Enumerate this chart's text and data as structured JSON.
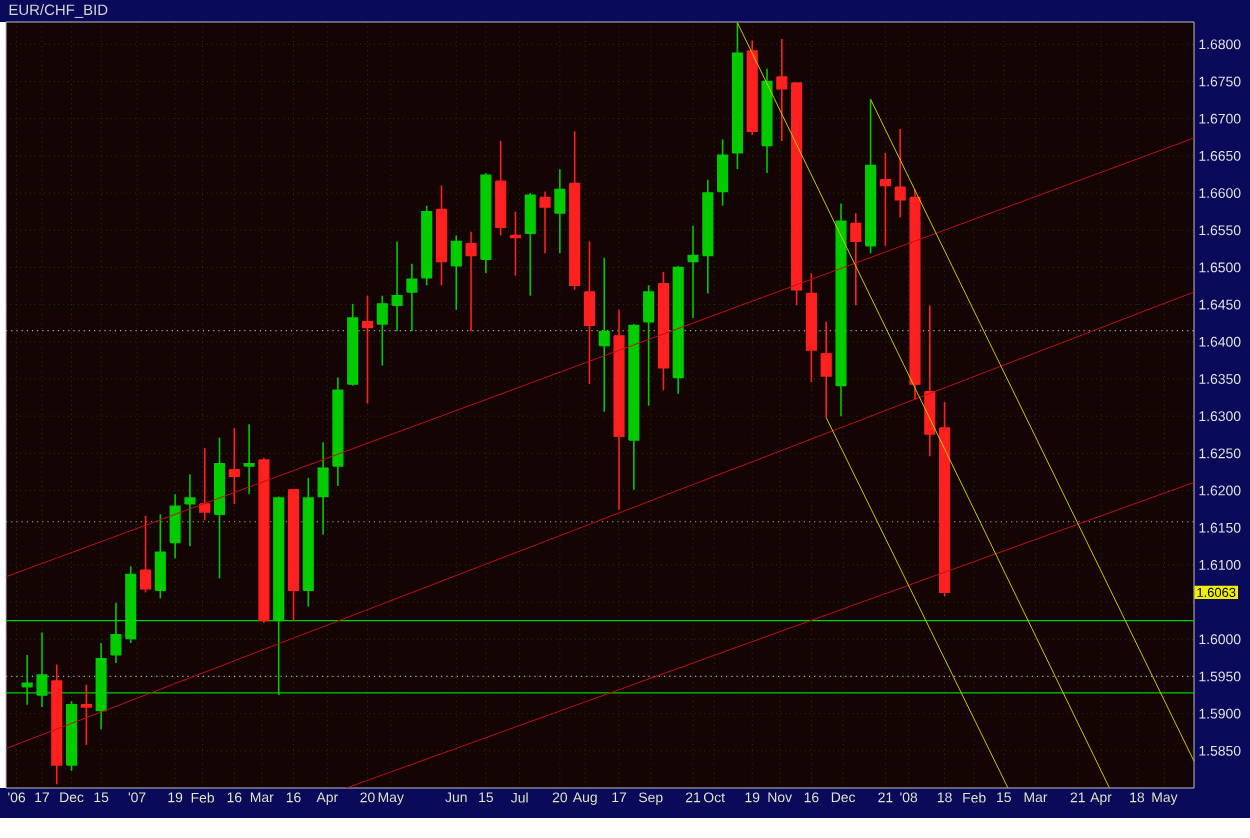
{
  "chart_data": {
    "type": "candlestick",
    "title": "EUR/CHF_BID",
    "xlim": [
      "2006-10-31",
      "2008-05-15"
    ],
    "ylim": [
      1.58,
      1.683
    ],
    "xticks": [
      {
        "value": "2006-11-05",
        "label": "'06"
      },
      {
        "value": "2006-11-17",
        "label": "17"
      },
      {
        "value": "2006-12-01",
        "label": "Dec"
      },
      {
        "value": "2006-12-15",
        "label": "15"
      },
      {
        "value": "2007-01-01",
        "label": "'07"
      },
      {
        "value": "2007-01-19",
        "label": "19"
      },
      {
        "value": "2007-02-01",
        "label": "Feb"
      },
      {
        "value": "2007-02-16",
        "label": "16"
      },
      {
        "value": "2007-03-01",
        "label": "Mar"
      },
      {
        "value": "2007-03-16",
        "label": "16"
      },
      {
        "value": "2007-04-01",
        "label": "Apr"
      },
      {
        "value": "2007-04-20",
        "label": "20"
      },
      {
        "value": "2007-05-01",
        "label": "May"
      },
      {
        "value": "2007-06-01",
        "label": "Jun"
      },
      {
        "value": "2007-06-15",
        "label": "15"
      },
      {
        "value": "2007-07-01",
        "label": "Jul"
      },
      {
        "value": "2007-07-20",
        "label": "20"
      },
      {
        "value": "2007-08-01",
        "label": "Aug"
      },
      {
        "value": "2007-08-17",
        "label": "17"
      },
      {
        "value": "2007-09-01",
        "label": "Sep"
      },
      {
        "value": "2007-09-21",
        "label": "21"
      },
      {
        "value": "2007-10-01",
        "label": "Oct"
      },
      {
        "value": "2007-10-19",
        "label": "19"
      },
      {
        "value": "2007-11-01",
        "label": "Nov"
      },
      {
        "value": "2007-11-16",
        "label": "16"
      },
      {
        "value": "2007-12-01",
        "label": "Dec"
      },
      {
        "value": "2007-12-21",
        "label": "21"
      },
      {
        "value": "2008-01-01",
        "label": "'08"
      },
      {
        "value": "2008-01-18",
        "label": "18"
      },
      {
        "value": "2008-02-01",
        "label": "Feb"
      },
      {
        "value": "2008-02-15",
        "label": "15"
      },
      {
        "value": "2008-03-01",
        "label": "Mar"
      },
      {
        "value": "2008-03-21",
        "label": "21"
      },
      {
        "value": "2008-04-01",
        "label": "Apr"
      },
      {
        "value": "2008-04-18",
        "label": "18"
      },
      {
        "value": "2008-05-01",
        "label": "May"
      }
    ],
    "yticks": [
      {
        "value": 1.585,
        "label": "1.5850"
      },
      {
        "value": 1.59,
        "label": "1.5900"
      },
      {
        "value": 1.595,
        "label": "1.5950"
      },
      {
        "value": 1.6,
        "label": "1.6000"
      },
      {
        "value": 1.605,
        "label": null
      },
      {
        "value": 1.61,
        "label": "1.6100"
      },
      {
        "value": 1.615,
        "label": "1.6150"
      },
      {
        "value": 1.62,
        "label": "1.6200"
      },
      {
        "value": 1.625,
        "label": "1.6250"
      },
      {
        "value": 1.63,
        "label": "1.6300"
      },
      {
        "value": 1.635,
        "label": "1.6350"
      },
      {
        "value": 1.64,
        "label": "1.6400"
      },
      {
        "value": 1.645,
        "label": "1.6450"
      },
      {
        "value": 1.65,
        "label": "1.6500"
      },
      {
        "value": 1.655,
        "label": "1.6550"
      },
      {
        "value": 1.66,
        "label": "1.6600"
      },
      {
        "value": 1.665,
        "label": "1.6650"
      },
      {
        "value": 1.67,
        "label": "1.6700"
      },
      {
        "value": 1.675,
        "label": "1.6750"
      },
      {
        "value": 1.68,
        "label": "1.6800"
      }
    ],
    "grid": true,
    "ref_lines": [
      {
        "axis": "y",
        "value": 1.6025,
        "color": "#00d000",
        "line_style": "solid"
      },
      {
        "axis": "y",
        "value": 1.5928,
        "color": "#00d000",
        "line_style": "solid"
      },
      {
        "axis": "y",
        "value": 1.6415,
        "color": "#b0b0b0",
        "line_style": "dotted"
      },
      {
        "axis": "y",
        "value": 1.6158,
        "color": "#b0b0b0",
        "line_style": "dotted"
      },
      {
        "axis": "y",
        "value": 1.595,
        "color": "#b0b0b0",
        "line_style": "dotted"
      }
    ],
    "annotations": [
      {
        "text": "1.6063",
        "y": 1.6063
      }
    ],
    "series": [
      {
        "x": [
          "2006-11-10",
          "2006-11-17",
          "2006-11-24",
          "2006-12-01",
          "2006-12-08",
          "2006-12-15",
          "2006-12-22",
          "2006-12-29",
          "2007-01-05",
          "2007-01-12",
          "2007-01-19",
          "2007-01-26",
          "2007-02-02",
          "2007-02-09",
          "2007-02-16",
          "2007-02-23",
          "2007-03-02",
          "2007-03-09",
          "2007-03-16",
          "2007-03-23",
          "2007-03-30",
          "2007-04-06",
          "2007-04-13",
          "2007-04-20",
          "2007-04-27",
          "2007-05-04",
          "2007-05-11",
          "2007-05-18",
          "2007-05-25",
          "2007-06-01",
          "2007-06-08",
          "2007-06-15",
          "2007-06-22",
          "2007-06-29",
          "2007-07-06",
          "2007-07-13",
          "2007-07-20",
          "2007-07-27",
          "2007-08-03",
          "2007-08-10",
          "2007-08-17",
          "2007-08-24",
          "2007-08-31",
          "2007-09-07",
          "2007-09-14",
          "2007-09-21",
          "2007-09-28",
          "2007-10-05",
          "2007-10-12",
          "2007-10-19",
          "2007-10-26",
          "2007-11-02",
          "2007-11-09",
          "2007-11-16",
          "2007-11-23",
          "2007-11-30",
          "2007-12-07",
          "2007-12-14",
          "2007-12-21",
          "2007-12-28",
          "2008-01-04",
          "2008-01-11",
          "2008-01-18"
        ],
        "ohlc": [
          [
            1.5936,
            1.5979,
            1.5912,
            1.5941
          ],
          [
            1.5925,
            1.6009,
            1.5909,
            1.5952
          ],
          [
            1.5944,
            1.5966,
            1.5805,
            1.5831
          ],
          [
            1.5831,
            1.5917,
            1.5823,
            1.5912
          ],
          [
            1.5912,
            1.5939,
            1.5858,
            1.5909
          ],
          [
            1.5904,
            1.5995,
            1.5879,
            1.5974
          ],
          [
            1.5979,
            1.6049,
            1.5968,
            1.6006
          ],
          [
            1.6001,
            1.6098,
            1.5995,
            1.6087
          ],
          [
            1.6093,
            1.6166,
            1.6063,
            1.6068
          ],
          [
            1.6066,
            1.6168,
            1.6055,
            1.6117
          ],
          [
            1.613,
            1.6195,
            1.6109,
            1.6179
          ],
          [
            1.6182,
            1.6222,
            1.6125,
            1.619
          ],
          [
            1.6182,
            1.6257,
            1.616,
            1.6171
          ],
          [
            1.6168,
            1.6271,
            1.6082,
            1.6236
          ],
          [
            1.6228,
            1.6284,
            1.6182,
            1.6219
          ],
          [
            1.6233,
            1.6289,
            1.6195,
            1.6236
          ],
          [
            1.6241,
            1.6244,
            1.6022,
            1.6025
          ],
          [
            1.6025,
            1.6192,
            1.5925,
            1.619
          ],
          [
            1.6201,
            1.6201,
            1.6025,
            1.6066
          ],
          [
            1.6066,
            1.6217,
            1.6044,
            1.619
          ],
          [
            1.6192,
            1.6265,
            1.6141,
            1.623
          ],
          [
            1.6233,
            1.6352,
            1.6206,
            1.6335
          ],
          [
            1.6343,
            1.6451,
            1.6341,
            1.6432
          ],
          [
            1.6427,
            1.6462,
            1.6317,
            1.6419
          ],
          [
            1.6424,
            1.6462,
            1.6368,
            1.6451
          ],
          [
            1.6449,
            1.6535,
            1.6414,
            1.6462
          ],
          [
            1.6467,
            1.6505,
            1.6414,
            1.6484
          ],
          [
            1.6486,
            1.6583,
            1.6476,
            1.6575
          ],
          [
            1.6578,
            1.661,
            1.6476,
            1.6508
          ],
          [
            1.6502,
            1.6543,
            1.6443,
            1.6535
          ],
          [
            1.6532,
            1.6548,
            1.6414,
            1.6516
          ],
          [
            1.6511,
            1.6627,
            1.6492,
            1.6624
          ],
          [
            1.6616,
            1.667,
            1.6543,
            1.6554
          ],
          [
            1.6543,
            1.6575,
            1.6489,
            1.654
          ],
          [
            1.6546,
            1.66,
            1.6462,
            1.6597
          ],
          [
            1.6594,
            1.6602,
            1.6519,
            1.6581
          ],
          [
            1.6573,
            1.6632,
            1.6519,
            1.6605
          ],
          [
            1.6613,
            1.6683,
            1.647,
            1.6476
          ],
          [
            1.6467,
            1.6535,
            1.6343,
            1.6422
          ],
          [
            1.6395,
            1.6513,
            1.6306,
            1.6414
          ],
          [
            1.6408,
            1.6443,
            1.6174,
            1.6273
          ],
          [
            1.6268,
            1.6424,
            1.6201,
            1.6422
          ],
          [
            1.6427,
            1.6476,
            1.6314,
            1.6467
          ],
          [
            1.6478,
            1.6494,
            1.6335,
            1.6365
          ],
          [
            1.6352,
            1.6502,
            1.633,
            1.65
          ],
          [
            1.6508,
            1.6556,
            1.6432,
            1.6516
          ],
          [
            1.6516,
            1.6618,
            1.6465,
            1.66
          ],
          [
            1.6602,
            1.6672,
            1.6583,
            1.6651
          ],
          [
            1.6654,
            1.6829,
            1.6632,
            1.6788
          ],
          [
            1.6791,
            1.6805,
            1.6678,
            1.6683
          ],
          [
            1.6664,
            1.6767,
            1.6627,
            1.675
          ],
          [
            1.6756,
            1.6807,
            1.667,
            1.674
          ],
          [
            1.6748,
            1.6748,
            1.6449,
            1.647
          ],
          [
            1.6465,
            1.6492,
            1.6346,
            1.6389
          ],
          [
            1.6384,
            1.6427,
            1.6298,
            1.6354
          ],
          [
            1.6341,
            1.6586,
            1.63,
            1.6562
          ],
          [
            1.6559,
            1.6573,
            1.6449,
            1.6535
          ],
          [
            1.6529,
            1.6726,
            1.6519,
            1.6637
          ],
          [
            1.6618,
            1.6654,
            1.6529,
            1.661
          ],
          [
            1.6608,
            1.6686,
            1.6567,
            1.6591
          ],
          [
            1.6594,
            1.6605,
            1.6322,
            1.6343
          ],
          [
            1.6333,
            1.6449,
            1.6246,
            1.6276
          ],
          [
            1.6284,
            1.6319,
            1.6058,
            1.6063
          ]
        ],
        "colors": [
          "#00cc00",
          "#00cc00",
          "#ff2020",
          "#00cc00",
          "#ff2020",
          "#00cc00",
          "#00cc00",
          "#00cc00",
          "#ff2020",
          "#00cc00",
          "#00cc00",
          "#00cc00",
          "#ff2020",
          "#00cc00",
          "#ff2020",
          "#00cc00",
          "#ff2020",
          "#00cc00",
          "#ff2020",
          "#00cc00",
          "#00cc00",
          "#00cc00",
          "#00cc00",
          "#ff2020",
          "#00cc00",
          "#00cc00",
          "#00cc00",
          "#00cc00",
          "#ff2020",
          "#00cc00",
          "#ff2020",
          "#00cc00",
          "#ff2020",
          "#ff2020",
          "#00cc00",
          "#ff2020",
          "#00cc00",
          "#ff2020",
          "#ff2020",
          "#00cc00",
          "#ff2020",
          "#00cc00",
          "#00cc00",
          "#ff2020",
          "#00cc00",
          "#00cc00",
          "#00cc00",
          "#00cc00",
          "#00cc00",
          "#ff2020",
          "#00cc00",
          "#ff2020",
          "#ff2020",
          "#ff2020",
          "#ff2020",
          "#00cc00",
          "#ff2020",
          "#00cc00",
          "#ff2020",
          "#ff2020",
          "#ff2020",
          "#ff2020",
          "#ff2020"
        ]
      },
      {
        "type": "line",
        "x": [
          "2006-10-31",
          "2008-05-15"
        ],
        "values": [
          1.6084,
          1.6674
        ],
        "color": "#c01010"
      },
      {
        "type": "line",
        "x": [
          "2006-10-31",
          "2008-05-15"
        ],
        "values": [
          1.5853,
          1.6467
        ],
        "color": "#c01010"
      },
      {
        "type": "line",
        "x": [
          "2007-04-10",
          "2008-05-15"
        ],
        "values": [
          1.58,
          1.6211
        ],
        "color": "#c01010"
      },
      {
        "type": "line",
        "x": [
          "2007-10-12",
          "2008-04-05"
        ],
        "values": [
          1.6829,
          1.58
        ],
        "color": "#c8c800"
      },
      {
        "type": "line",
        "x": [
          "2007-11-23",
          "2008-02-17"
        ],
        "values": [
          1.6298,
          1.58
        ],
        "color": "#c8c800"
      },
      {
        "type": "line",
        "x": [
          "2007-12-14",
          "2008-05-15"
        ],
        "values": [
          1.6726,
          1.5836
        ],
        "color": "#c8c800"
      }
    ]
  }
}
